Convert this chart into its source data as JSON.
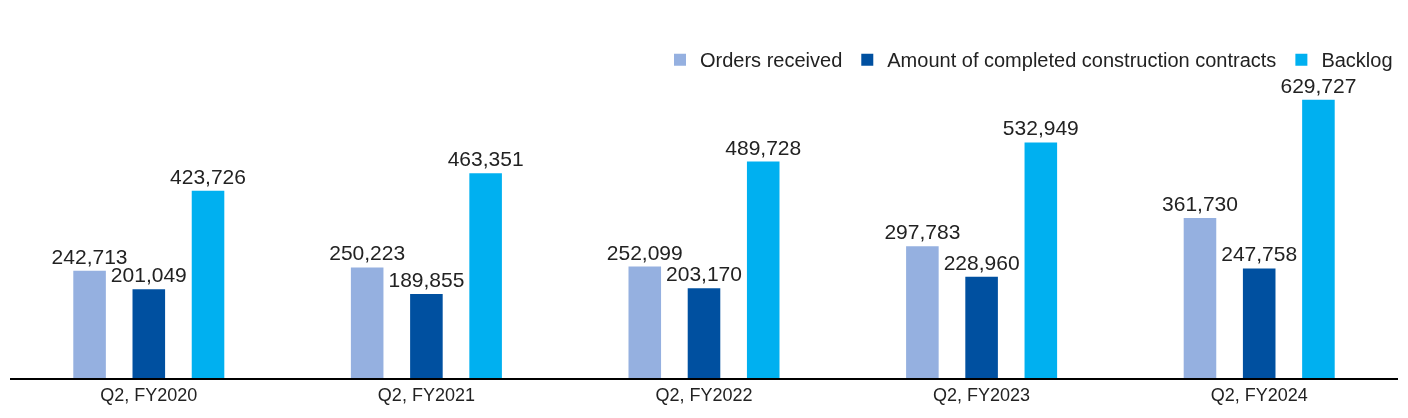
{
  "chart_data": {
    "type": "bar",
    "categories": [
      "Q2, FY2020",
      "Q2, FY2021",
      "Q2, FY2022",
      "Q2, FY2023",
      "Q2, FY2024"
    ],
    "series": [
      {
        "name": "Orders received",
        "color": "#95b0e0",
        "values": [
          242713,
          250223,
          252099,
          297783,
          361730
        ],
        "value_labels": [
          "242,713",
          "250,223",
          "252,099",
          "297,783",
          "361,730"
        ]
      },
      {
        "name": "Amount of completed construction contracts",
        "color": "#0050a0",
        "values": [
          201049,
          189855,
          203170,
          228960,
          247758
        ],
        "value_labels": [
          "201,049",
          "189,855",
          "203,170",
          "228,960",
          "247,758"
        ]
      },
      {
        "name": "Backlog",
        "color": "#00b0f0",
        "values": [
          423726,
          463351,
          489728,
          532949,
          629727
        ],
        "value_labels": [
          "423,726",
          "463,351",
          "489,728",
          "532,949",
          "629,727"
        ]
      }
    ],
    "legend": "top right",
    "tick_labels": "x"
  }
}
